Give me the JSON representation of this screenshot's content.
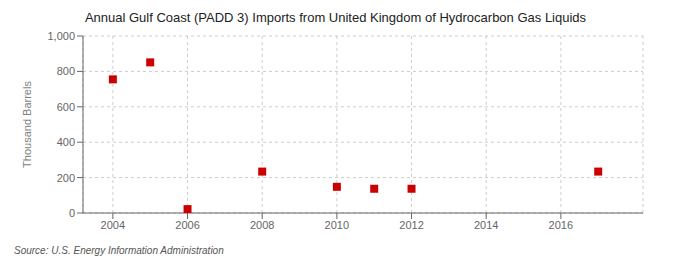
{
  "chart_data": {
    "type": "scatter",
    "title": "Annual Gulf Coast (PADD 3) Imports from United Kingdom of Hydrocarbon Gas Liquids",
    "y_label": "Thousand Barrels",
    "annotations": [
      "Source: U.S. Energy Information Administration"
    ],
    "x": [
      2004,
      2005,
      2006,
      2008,
      2010,
      2011,
      2012,
      2017
    ],
    "values": [
      755,
      851,
      22,
      234,
      148,
      137,
      137,
      234
    ],
    "color": "#cc0000",
    "marker": "square",
    "xlim": [
      2003.2,
      2018.2
    ],
    "ylim": [
      0,
      1000
    ],
    "xticks": [
      2004,
      2006,
      2008,
      2010,
      2012,
      2014,
      2016
    ],
    "yticks": [
      0,
      200,
      400,
      600,
      800,
      {
        "value": 1000,
        "label": "1,000"
      }
    ],
    "grid": true
  }
}
